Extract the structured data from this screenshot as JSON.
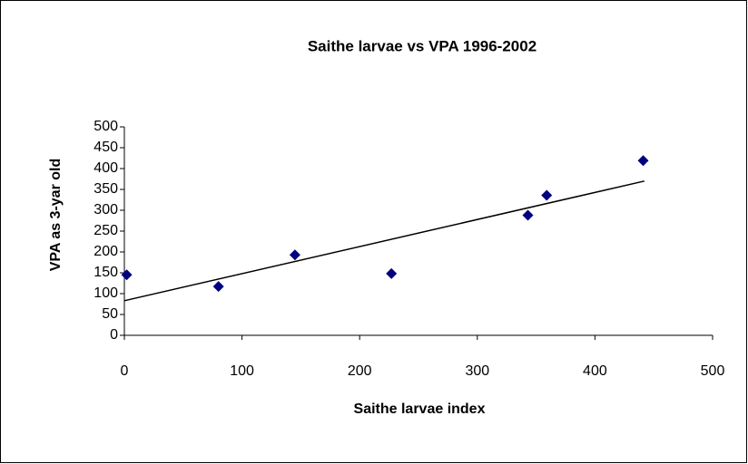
{
  "chart_data": {
    "type": "scatter",
    "title": "Saithe larvae vs VPA 1996-2002",
    "x_label": "Saithe larvae index",
    "y_label": "VPA as 3-yar old",
    "series": [
      {
        "color": "#000080",
        "x": [
          2,
          80,
          145,
          227,
          343,
          359,
          441
        ],
        "values": [
          145,
          117,
          193,
          148,
          288,
          336,
          419
        ]
      }
    ],
    "trendline": {
      "color": "#000000",
      "x": [
        0,
        442
      ],
      "values": [
        83,
        370
      ]
    },
    "xlim": [
      0,
      500
    ],
    "xticks": [
      0,
      100,
      200,
      300,
      400,
      500
    ],
    "ylim": [
      0,
      500
    ],
    "yticks": [
      0,
      50,
      100,
      150,
      200,
      250,
      300,
      350,
      400,
      450,
      500
    ],
    "grid": false
  }
}
